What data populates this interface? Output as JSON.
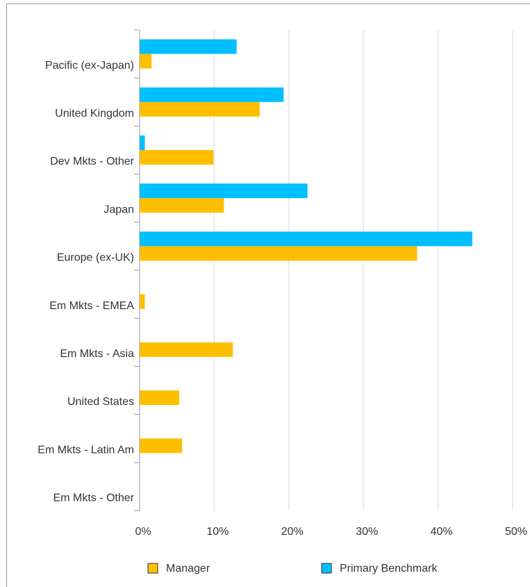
{
  "chart_data": {
    "type": "bar",
    "orientation": "horizontal",
    "categories": [
      "Pacific (ex-Japan)",
      "United Kingdom",
      "Dev Mkts - Other",
      "Japan",
      "Europe (ex-UK)",
      "Em Mkts - EMEA",
      "Em Mkts - Asia",
      "United States",
      "Em Mkts - Latin Am",
      "Em Mkts - Other"
    ],
    "series": [
      {
        "name": "Manager",
        "color": "#ffbf00",
        "values": [
          1.6,
          16.1,
          9.9,
          11.3,
          37.2,
          0.7,
          12.5,
          5.3,
          5.7,
          0
        ]
      },
      {
        "name": "Primary Benchmark",
        "color": "#00bfff",
        "values": [
          13.0,
          19.3,
          0.7,
          22.5,
          44.6,
          0,
          0,
          0,
          0,
          0
        ]
      }
    ],
    "xlim": [
      0,
      50
    ],
    "xticks": [
      {
        "value": 0,
        "label": "0%"
      },
      {
        "value": 10,
        "label": "10%"
      },
      {
        "value": 20,
        "label": "20%"
      },
      {
        "value": 30,
        "label": "30%"
      },
      {
        "value": 40,
        "label": "40%"
      },
      {
        "value": 50,
        "label": "50%"
      }
    ],
    "grid": true,
    "legend": "bottom"
  }
}
